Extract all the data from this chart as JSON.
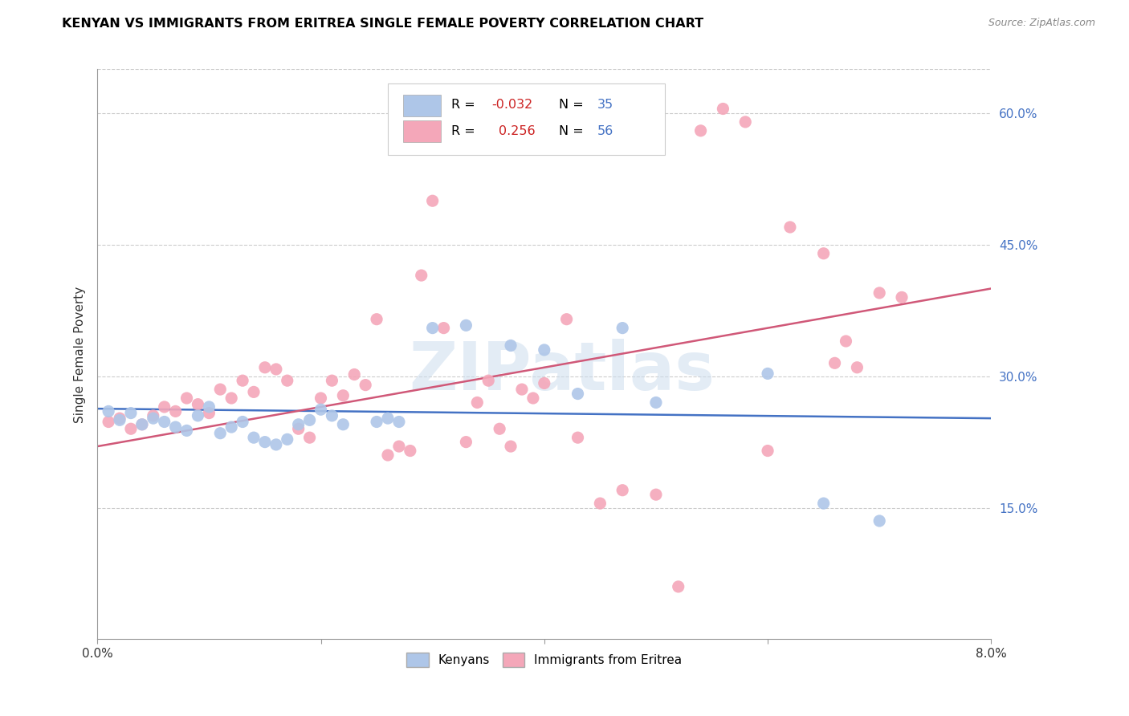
{
  "title": "KENYAN VS IMMIGRANTS FROM ERITREA SINGLE FEMALE POVERTY CORRELATION CHART",
  "source": "Source: ZipAtlas.com",
  "ylabel": "Single Female Poverty",
  "x_min": 0.0,
  "x_max": 0.08,
  "y_min": 0.0,
  "y_max": 0.65,
  "y_ticks": [
    0.15,
    0.3,
    0.45,
    0.6
  ],
  "y_tick_labels": [
    "15.0%",
    "30.0%",
    "45.0%",
    "60.0%"
  ],
  "watermark": "ZIPatlas",
  "blue_color": "#aec6e8",
  "pink_color": "#f4a7b9",
  "blue_line_color": "#4472c4",
  "pink_line_color": "#d05878",
  "blue_scatter": [
    [
      0.001,
      0.26
    ],
    [
      0.002,
      0.25
    ],
    [
      0.003,
      0.258
    ],
    [
      0.004,
      0.245
    ],
    [
      0.005,
      0.252
    ],
    [
      0.006,
      0.248
    ],
    [
      0.007,
      0.242
    ],
    [
      0.008,
      0.238
    ],
    [
      0.009,
      0.255
    ],
    [
      0.01,
      0.265
    ],
    [
      0.011,
      0.235
    ],
    [
      0.012,
      0.242
    ],
    [
      0.013,
      0.248
    ],
    [
      0.014,
      0.23
    ],
    [
      0.015,
      0.225
    ],
    [
      0.016,
      0.222
    ],
    [
      0.017,
      0.228
    ],
    [
      0.018,
      0.245
    ],
    [
      0.019,
      0.25
    ],
    [
      0.02,
      0.262
    ],
    [
      0.021,
      0.255
    ],
    [
      0.022,
      0.245
    ],
    [
      0.025,
      0.248
    ],
    [
      0.026,
      0.252
    ],
    [
      0.027,
      0.248
    ],
    [
      0.03,
      0.355
    ],
    [
      0.033,
      0.358
    ],
    [
      0.037,
      0.335
    ],
    [
      0.04,
      0.33
    ],
    [
      0.043,
      0.28
    ],
    [
      0.047,
      0.355
    ],
    [
      0.05,
      0.27
    ],
    [
      0.06,
      0.303
    ],
    [
      0.065,
      0.155
    ],
    [
      0.07,
      0.135
    ]
  ],
  "pink_scatter": [
    [
      0.001,
      0.248
    ],
    [
      0.002,
      0.252
    ],
    [
      0.003,
      0.24
    ],
    [
      0.004,
      0.245
    ],
    [
      0.005,
      0.255
    ],
    [
      0.006,
      0.265
    ],
    [
      0.007,
      0.26
    ],
    [
      0.008,
      0.275
    ],
    [
      0.009,
      0.268
    ],
    [
      0.01,
      0.258
    ],
    [
      0.011,
      0.285
    ],
    [
      0.012,
      0.275
    ],
    [
      0.013,
      0.295
    ],
    [
      0.014,
      0.282
    ],
    [
      0.015,
      0.31
    ],
    [
      0.016,
      0.308
    ],
    [
      0.017,
      0.295
    ],
    [
      0.018,
      0.24
    ],
    [
      0.019,
      0.23
    ],
    [
      0.02,
      0.275
    ],
    [
      0.021,
      0.295
    ],
    [
      0.022,
      0.278
    ],
    [
      0.023,
      0.302
    ],
    [
      0.024,
      0.29
    ],
    [
      0.025,
      0.365
    ],
    [
      0.026,
      0.21
    ],
    [
      0.027,
      0.22
    ],
    [
      0.028,
      0.215
    ],
    [
      0.029,
      0.415
    ],
    [
      0.03,
      0.5
    ],
    [
      0.031,
      0.355
    ],
    [
      0.033,
      0.225
    ],
    [
      0.034,
      0.27
    ],
    [
      0.035,
      0.295
    ],
    [
      0.036,
      0.24
    ],
    [
      0.037,
      0.22
    ],
    [
      0.038,
      0.285
    ],
    [
      0.039,
      0.275
    ],
    [
      0.04,
      0.292
    ],
    [
      0.042,
      0.365
    ],
    [
      0.043,
      0.23
    ],
    [
      0.045,
      0.155
    ],
    [
      0.047,
      0.17
    ],
    [
      0.05,
      0.165
    ],
    [
      0.052,
      0.06
    ],
    [
      0.054,
      0.58
    ],
    [
      0.056,
      0.605
    ],
    [
      0.058,
      0.59
    ],
    [
      0.06,
      0.215
    ],
    [
      0.062,
      0.47
    ],
    [
      0.065,
      0.44
    ],
    [
      0.066,
      0.315
    ],
    [
      0.067,
      0.34
    ],
    [
      0.068,
      0.31
    ],
    [
      0.07,
      0.395
    ],
    [
      0.072,
      0.39
    ]
  ]
}
